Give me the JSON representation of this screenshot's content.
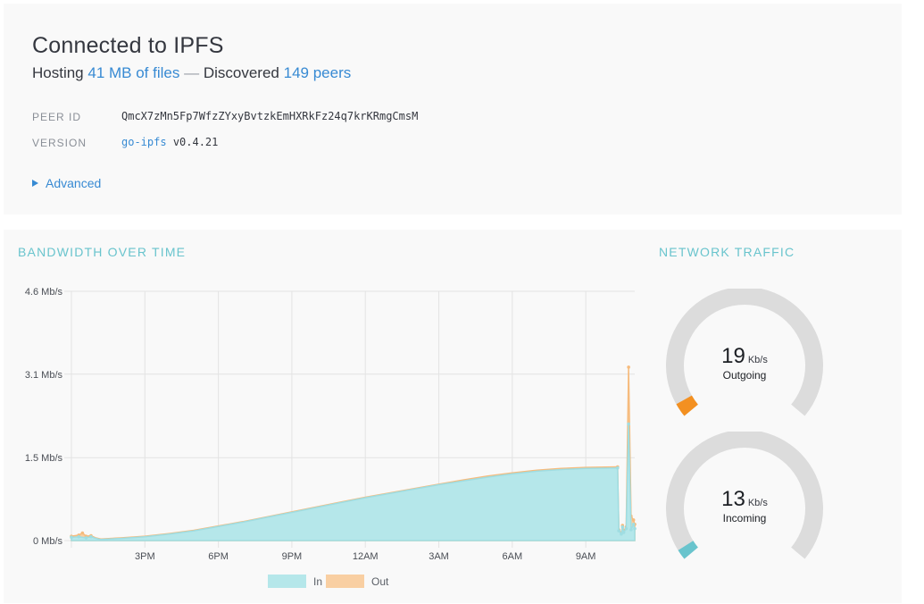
{
  "status": {
    "title": "Connected to IPFS",
    "hosting_prefix": "Hosting",
    "hosting_link": "41 MB of files",
    "separator": "—",
    "discovered_prefix": "Discovered",
    "peers_link": "149 peers",
    "peer_id_label": "PEER ID",
    "peer_id_value": "QmcX7zMn5Fp7WfzZYxyBvtzkEmHXRkFz24q7krKRmgCmsM",
    "version_label": "VERSION",
    "version_link": "go-ipfs",
    "version_number": "v0.4.21",
    "advanced_label": "Advanced"
  },
  "bandwidth": {
    "title": "BANDWIDTH OVER TIME"
  },
  "traffic": {
    "title": "NETWORK TRAFFIC",
    "outgoing": {
      "value": "19",
      "unit": "Kb/s",
      "label": "Outgoing",
      "fraction": 0.04,
      "color": "#f39021"
    },
    "incoming": {
      "value": "13",
      "unit": "Kb/s",
      "label": "Incoming",
      "fraction": 0.03,
      "color": "#69c4cd"
    }
  },
  "chart_data": {
    "type": "area",
    "title": "BANDWIDTH OVER TIME",
    "y_ticks": [
      "0 Mb/s",
      "1.5 Mb/s",
      "3.1 Mb/s",
      "4.6 Mb/s"
    ],
    "y_unit": "Mb/s",
    "ylim": [
      0,
      4.6
    ],
    "x_ticks": [
      "3PM",
      "6PM",
      "9PM",
      "12AM",
      "3AM",
      "6AM",
      "9AM"
    ],
    "x_unit": "hours since start",
    "xlim": [
      0,
      23
    ],
    "grid": true,
    "legend_position": "bottom",
    "series": [
      {
        "name": "In",
        "color": "#b5e7ea",
        "stroke": "#9fdde2",
        "x": [
          0,
          0.3,
          0.6,
          0.8,
          1,
          1.2,
          2,
          3,
          4,
          5,
          6,
          7,
          8,
          9,
          10,
          11,
          12,
          13,
          14,
          15,
          16,
          17,
          18,
          19,
          20,
          21,
          22.3,
          22.35,
          22.45,
          22.5,
          22.55,
          22.65,
          22.75,
          22.85,
          22.95,
          23
        ],
        "y": [
          0.06,
          0.07,
          0.05,
          0.07,
          0.04,
          0.02,
          0.04,
          0.07,
          0.12,
          0.18,
          0.26,
          0.34,
          0.43,
          0.52,
          0.61,
          0.7,
          0.79,
          0.87,
          0.95,
          1.03,
          1.1,
          1.17,
          1.23,
          1.28,
          1.31,
          1.33,
          1.34,
          0.18,
          0.12,
          0.25,
          0.15,
          0.22,
          2.15,
          0.2,
          0.3,
          0.22
        ]
      },
      {
        "name": "Out",
        "color": "#f9cfa2",
        "stroke": "#f6bb7d",
        "x": [
          0,
          0.3,
          0.45,
          0.6,
          0.8,
          1,
          1.2,
          2,
          3,
          4,
          5,
          6,
          7,
          8,
          9,
          10,
          11,
          12,
          13,
          14,
          15,
          16,
          17,
          18,
          19,
          20,
          21,
          22.3,
          22.35,
          22.45,
          22.5,
          22.55,
          22.65,
          22.75,
          22.85,
          22.95,
          23
        ],
        "y": [
          0.08,
          0.1,
          0.14,
          0.08,
          0.09,
          0.05,
          0.03,
          0.05,
          0.08,
          0.13,
          0.19,
          0.27,
          0.35,
          0.44,
          0.53,
          0.62,
          0.71,
          0.8,
          0.88,
          0.96,
          1.04,
          1.12,
          1.19,
          1.25,
          1.3,
          1.33,
          1.35,
          1.36,
          0.2,
          0.14,
          0.28,
          0.18,
          0.25,
          3.2,
          0.45,
          0.38,
          0.3
        ]
      }
    ]
  }
}
